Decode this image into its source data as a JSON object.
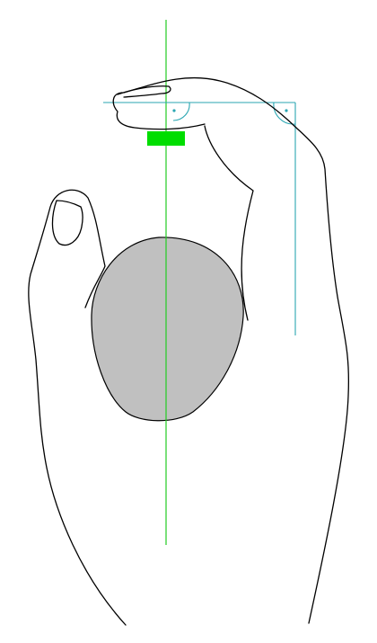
{
  "colors": {
    "background": "#ffffff",
    "outline": "#000000",
    "object_fill": "#c0c0c0",
    "axis_line": "#22cc22",
    "contact_pad": "#00dd00",
    "construction_line": "#2aa6b2"
  },
  "icons": {
    "hand": "hand-outline-icon",
    "object": "egg-object-icon",
    "right_angle": "right-angle-marker-icon"
  }
}
